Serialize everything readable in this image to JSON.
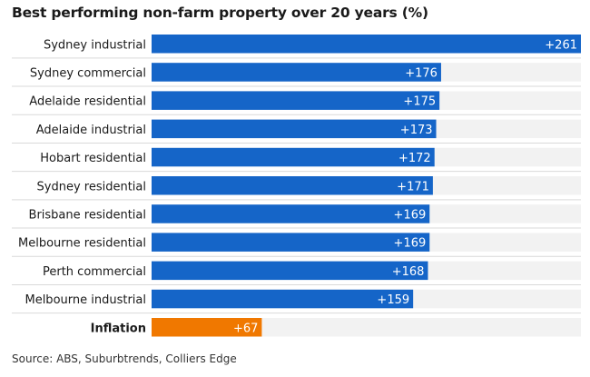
{
  "chart_data": {
    "type": "bar",
    "orientation": "horizontal",
    "title": "Best performing non-farm property over 20 years (%)",
    "source": "Source: ABS, Suburbtrends, Colliers Edge",
    "categories": [
      "Sydney industrial",
      "Sydney commercial",
      "Adelaide residential",
      "Adelaide industrial",
      "Hobart residential",
      "Sydney residential",
      "Brisbane residential",
      "Melbourne residential",
      "Perth commercial",
      "Melbourne industrial",
      "Inflation"
    ],
    "values": [
      261,
      176,
      175,
      173,
      172,
      171,
      169,
      169,
      168,
      159,
      67
    ],
    "data_labels": [
      "+261",
      "+176",
      "+175",
      "+173",
      "+172",
      "+171",
      "+169",
      "+169",
      "+168",
      "+159",
      "+67"
    ],
    "highlight": [
      "Inflation"
    ],
    "xlim": [
      0,
      261
    ],
    "grid": false,
    "legend": "none",
    "colors": {
      "bar": "#1565c8",
      "highlight_bar": "#f07800",
      "track": "#f2f2f2",
      "separator": "#d9d9d9",
      "label_text": "#1a1a1a",
      "value_text": "#ffffff"
    }
  }
}
